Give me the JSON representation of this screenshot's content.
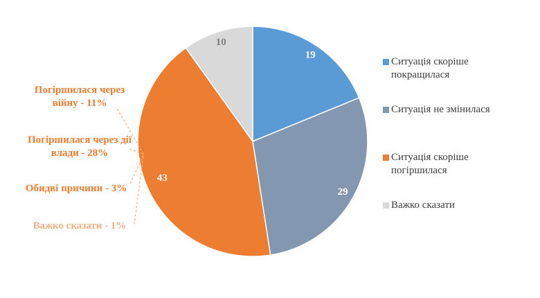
{
  "chart_data": {
    "type": "pie",
    "categories": [
      "Ситуація скоріше покращилася",
      "Ситуація не змінилася",
      "Ситуація скоріше погіршилася",
      "Важко сказати"
    ],
    "values": [
      19,
      29,
      43,
      10
    ],
    "colors": [
      "#5b9bd5",
      "#8497b0",
      "#ed7d31",
      "#d9d9d9"
    ],
    "label_colors": [
      "#ffffff",
      "#ffffff",
      "#ffffff",
      "#7f7f7f"
    ],
    "legend": "right",
    "annotations": [
      {
        "text": "Погіршилася через війну - 11%",
        "color": "#ed7d31"
      },
      {
        "text": "Погіршилася через дії влади - 28%",
        "color": "#ed7d31"
      },
      {
        "text": "Обидві причини - 3%",
        "color": "#ed7d31"
      },
      {
        "text": "Важко сказати - 1%",
        "color": "#f4b183"
      }
    ]
  }
}
